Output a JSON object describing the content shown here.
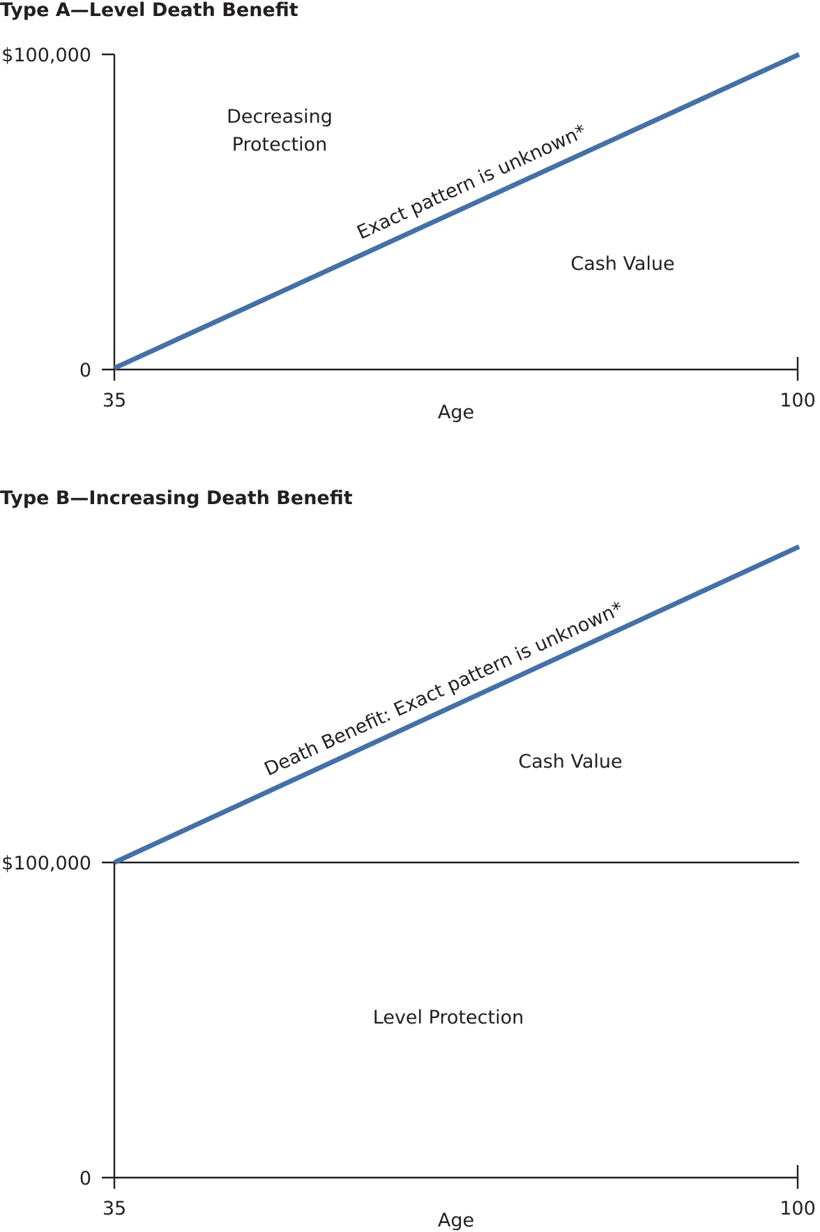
{
  "panel_a": {
    "title": "Type A—Level Death Benefit",
    "y_top_label": "$100,000",
    "y_zero_label": "0",
    "x_start_label": "35",
    "x_end_label": "100",
    "x_axis_label": "Age",
    "line_label": "Exact pattern is unknown*",
    "region_upper_line1": "Decreasing",
    "region_upper_line2": "Protection",
    "region_lower": "Cash Value"
  },
  "panel_b": {
    "title": "Type B—Increasing Death Benefit",
    "y_level_label": "$100,000",
    "y_zero_label": "0",
    "x_start_label": "35",
    "x_end_label": "100",
    "x_axis_label": "Age",
    "line_label": "Death Benefit: Exact pattern is unknown*",
    "region_upper": "Cash Value",
    "region_lower": "Level Protection"
  },
  "colors": {
    "line": "#4470a6",
    "axis": "#231f20"
  }
}
